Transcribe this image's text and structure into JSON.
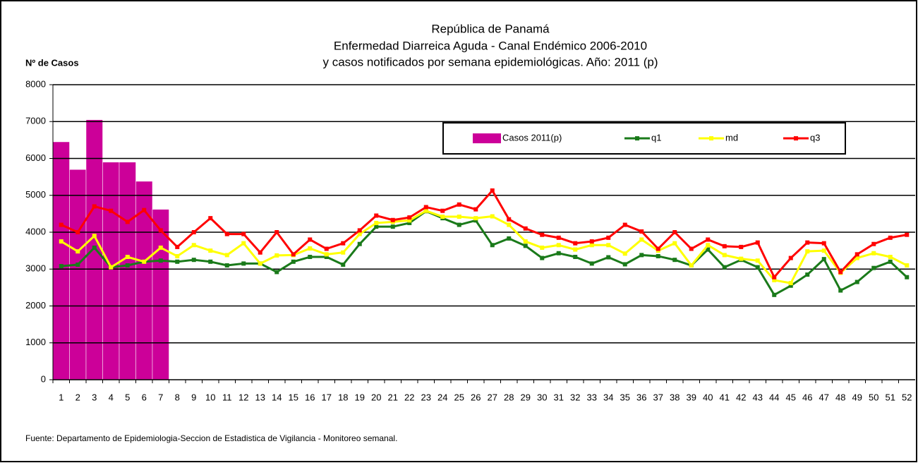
{
  "chart_data": {
    "type": "bar",
    "title_lines": [
      "República de Panamá",
      "Enfermedad Diarreica Aguda - Canal Endémico 2006-2010",
      "y casos notificados por semana epidemiológicas.  Año: 2011 (p)"
    ],
    "y_label": "Nº de Casos",
    "source": "Fuente: Departamento de Epidemiologia-Seccion de Estadistica de Vigilancia - Monitoreo semanal.",
    "categories": [
      "1",
      "2",
      "3",
      "4",
      "5",
      "6",
      "7",
      "8",
      "9",
      "10",
      "11",
      "12",
      "13",
      "14",
      "15",
      "16",
      "17",
      "18",
      "19",
      "20",
      "21",
      "22",
      "23",
      "24",
      "25",
      "26",
      "27",
      "28",
      "29",
      "30",
      "31",
      "32",
      "33",
      "34",
      "35",
      "36",
      "37",
      "38",
      "39",
      "40",
      "41",
      "42",
      "43",
      "44",
      "45",
      "46",
      "47",
      "48",
      "49",
      "50",
      "51",
      "52"
    ],
    "ylim": [
      0,
      8000
    ],
    "yticks": [
      0,
      1000,
      2000,
      3000,
      4000,
      5000,
      6000,
      7000,
      8000
    ],
    "grid": true,
    "series": [
      {
        "name": "Casos 2011(p)",
        "type": "bar",
        "color": "#cc0099",
        "values": [
          6450,
          5700,
          7050,
          5900,
          5900,
          5380,
          4620,
          null,
          null,
          null,
          null,
          null,
          null,
          null,
          null,
          null,
          null,
          null,
          null,
          null,
          null,
          null,
          null,
          null,
          null,
          null,
          null,
          null,
          null,
          null,
          null,
          null,
          null,
          null,
          null,
          null,
          null,
          null,
          null,
          null,
          null,
          null,
          null,
          null,
          null,
          null,
          null,
          null,
          null,
          null,
          null,
          null
        ]
      },
      {
        "name": "q1",
        "type": "line",
        "color": "#1a7a1a",
        "values": [
          3080,
          3120,
          3580,
          3050,
          3100,
          3200,
          3230,
          3200,
          3250,
          3200,
          3100,
          3150,
          3150,
          2920,
          3200,
          3330,
          3330,
          3120,
          3680,
          4150,
          4150,
          4250,
          4570,
          4380,
          4200,
          4320,
          3650,
          3830,
          3630,
          3300,
          3430,
          3330,
          3150,
          3320,
          3130,
          3380,
          3350,
          3250,
          3100,
          3530,
          3050,
          3250,
          3050,
          2300,
          2550,
          2850,
          3270,
          2420,
          2650,
          3030,
          3200,
          2780
        ]
      },
      {
        "name": "md",
        "type": "line",
        "color": "#ffff00",
        "values": [
          3750,
          3480,
          3900,
          3050,
          3330,
          3200,
          3580,
          3350,
          3650,
          3500,
          3380,
          3700,
          3150,
          3370,
          3380,
          3560,
          3400,
          3450,
          3950,
          4250,
          4280,
          4320,
          4580,
          4420,
          4420,
          4380,
          4430,
          4200,
          3750,
          3580,
          3650,
          3530,
          3650,
          3650,
          3420,
          3800,
          3500,
          3700,
          3100,
          3650,
          3380,
          3280,
          3230,
          2700,
          2620,
          3480,
          3500,
          2900,
          3300,
          3430,
          3330,
          3100
        ]
      },
      {
        "name": "q3",
        "type": "line",
        "color": "#ff0000",
        "values": [
          4200,
          4000,
          4700,
          4580,
          4280,
          4600,
          4050,
          3600,
          4000,
          4380,
          3950,
          3950,
          3450,
          4000,
          3400,
          3800,
          3550,
          3700,
          4050,
          4450,
          4330,
          4400,
          4680,
          4580,
          4750,
          4620,
          5130,
          4350,
          4100,
          3930,
          3850,
          3700,
          3750,
          3850,
          4200,
          4020,
          3550,
          4000,
          3550,
          3800,
          3620,
          3600,
          3720,
          2780,
          3300,
          3720,
          3700,
          2920,
          3400,
          3680,
          3850,
          3930
        ]
      }
    ]
  }
}
